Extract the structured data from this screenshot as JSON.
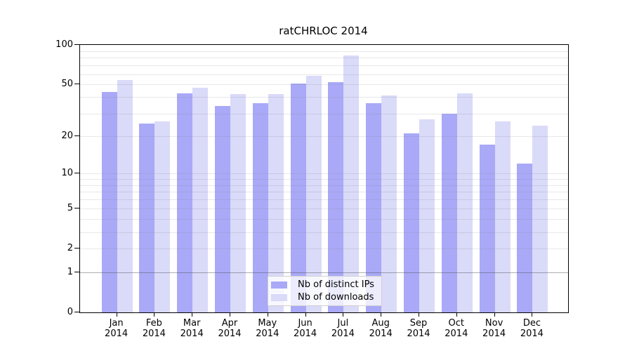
{
  "chart_data": {
    "type": "bar",
    "title": "ratCHRLOC 2014",
    "categories": [
      "Jan",
      "Feb",
      "Mar",
      "Apr",
      "May",
      "Jun",
      "Jul",
      "Aug",
      "Sep",
      "Oct",
      "Nov",
      "Dec"
    ],
    "x_label_line2": "2014",
    "series": [
      {
        "name": "Nb of distinct IPs",
        "color": "#a9a9f7",
        "values": [
          44,
          25,
          43,
          34,
          36,
          51,
          52,
          36,
          21,
          30,
          17,
          12
        ]
      },
      {
        "name": "Nb of downloads",
        "color": "#dadaf9",
        "values": [
          54,
          26,
          47,
          42,
          42,
          58,
          83,
          41,
          27,
          43,
          26,
          24
        ]
      }
    ],
    "y_axis": {
      "scale": "log(1+x)",
      "tick_values": [
        0,
        1,
        2,
        5,
        10,
        20,
        50,
        100
      ],
      "max": 100
    },
    "gridlines": {
      "minor_values": [
        2,
        3,
        4,
        5,
        6,
        7,
        8,
        9,
        10,
        20,
        30,
        40,
        50,
        60,
        70,
        80,
        90
      ],
      "emphasized_values": [
        1
      ]
    },
    "legend_position": "bottom-center",
    "xlabel": "",
    "ylabel": ""
  },
  "colors": {
    "bar_distinct_ips": "#a9a9f7",
    "bar_downloads": "#dadaf9",
    "axis": "#000000",
    "gridline_minor": "#e6e6e9",
    "gridline_emphasis": "#b2b2b6",
    "legend_border": "#d0d0d0",
    "background": "#ffffff"
  }
}
